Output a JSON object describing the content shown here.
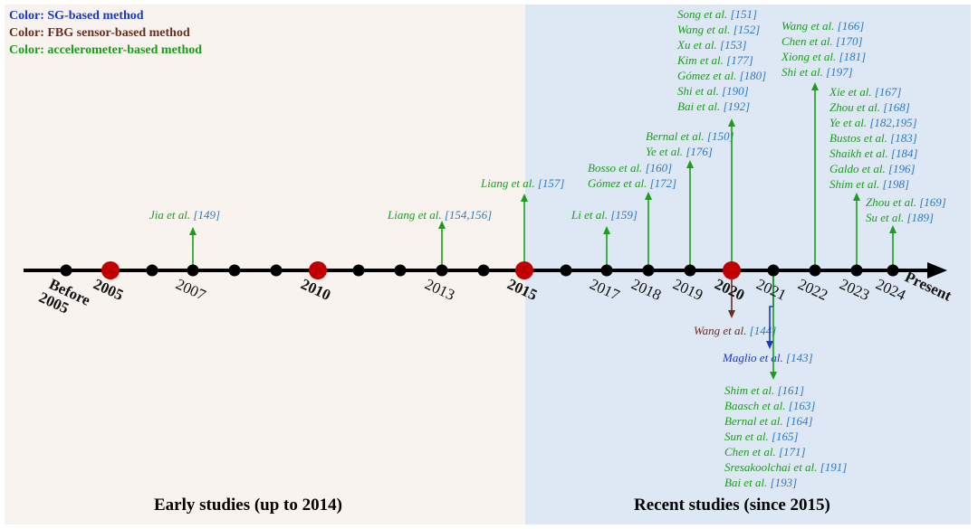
{
  "colors": {
    "sg": "#1838c8",
    "fbg": "#6b2e1e",
    "accelerometer": "#1a9e1a",
    "ref_number": "#2a78c8",
    "axis": "#000000",
    "major_node": "#c00000",
    "early_bg": "#f8f3ef",
    "recent_bg": "#dde8f4"
  },
  "legend": [
    {
      "text": "Color: SG-based method",
      "color": "#1838c8"
    },
    {
      "text": "Color: FBG sensor-based method",
      "color": "#6b2e1e"
    },
    {
      "text": "Color: accelerometer-based method",
      "color": "#1a9e1a"
    }
  ],
  "sections": {
    "early": "Early studies (up to 2014)",
    "recent": "Recent studies (since 2015)"
  },
  "timeline": {
    "end_label": "Present",
    "ticks": [
      {
        "label": "Before\n2005",
        "major": false,
        "bold": true
      },
      {
        "label": "2005",
        "major": true,
        "bold": true
      },
      {
        "label": "",
        "major": false,
        "bold": false
      },
      {
        "label": "2007",
        "major": false,
        "bold": false
      },
      {
        "label": "",
        "major": false,
        "bold": false
      },
      {
        "label": "",
        "major": false,
        "bold": false
      },
      {
        "label": "2010",
        "major": true,
        "bold": true
      },
      {
        "label": "",
        "major": false,
        "bold": false
      },
      {
        "label": "",
        "major": false,
        "bold": false
      },
      {
        "label": "2013",
        "major": false,
        "bold": false
      },
      {
        "label": "",
        "major": false,
        "bold": false
      },
      {
        "label": "2015",
        "major": true,
        "bold": true
      },
      {
        "label": "",
        "major": false,
        "bold": false
      },
      {
        "label": "2017",
        "major": false,
        "bold": false
      },
      {
        "label": "2018",
        "major": false,
        "bold": false
      },
      {
        "label": "2019",
        "major": false,
        "bold": false
      },
      {
        "label": "2020",
        "major": true,
        "bold": true
      },
      {
        "label": "2021",
        "major": false,
        "bold": false
      },
      {
        "label": "2022",
        "major": false,
        "bold": false
      },
      {
        "label": "2023",
        "major": false,
        "bold": false
      },
      {
        "label": "2024",
        "major": false,
        "bold": false
      }
    ]
  },
  "studies": [
    {
      "year": "2007",
      "method": "accelerometer",
      "direction": "up",
      "refs": [
        {
          "author": "Jia et al.",
          "num": "[149]"
        }
      ]
    },
    {
      "year": "2013",
      "method": "accelerometer",
      "direction": "up",
      "refs": [
        {
          "author": "Liang et al.",
          "num": "[154,156]"
        }
      ]
    },
    {
      "year": "2015",
      "method": "accelerometer",
      "direction": "up",
      "refs": [
        {
          "author": "Liang et al.",
          "num": "[157]"
        }
      ]
    },
    {
      "year": "2017",
      "method": "accelerometer",
      "direction": "up",
      "refs": [
        {
          "author": "Li et al.",
          "num": "[159]"
        }
      ]
    },
    {
      "year": "2018",
      "method": "accelerometer",
      "direction": "up",
      "refs": [
        {
          "author": "Bosso et al.",
          "num": "[160]"
        },
        {
          "author": "Gómez et al.",
          "num": "[172]"
        }
      ]
    },
    {
      "year": "2019",
      "method": "accelerometer",
      "direction": "up",
      "refs": [
        {
          "author": "Bernal et al.",
          "num": "[150]"
        },
        {
          "author": "Ye et al.",
          "num": "[176]"
        }
      ]
    },
    {
      "year": "2020",
      "method": "accelerometer",
      "direction": "up",
      "refs": [
        {
          "author": "Song et al.",
          "num": "[151]"
        },
        {
          "author": "Wang et al.",
          "num": "[152]"
        },
        {
          "author": "Xu  et al.",
          "num": "[153]"
        },
        {
          "author": "Kim et al.",
          "num": "[177]"
        },
        {
          "author": "Gómez et al.",
          "num": "[180]"
        },
        {
          "author": "Shi et al.",
          "num": "[190]"
        },
        {
          "author": "Bai et al.",
          "num": "[192]"
        }
      ]
    },
    {
      "year": "2020",
      "method": "fbg",
      "direction": "down",
      "refs": [
        {
          "author": "Wang et al.",
          "num": "[144]"
        }
      ]
    },
    {
      "year": "2021",
      "method": "sg",
      "direction": "down",
      "refs": [
        {
          "author": "Maglio et al.",
          "num": "[143]"
        }
      ]
    },
    {
      "year": "2021",
      "method": "accelerometer",
      "direction": "down",
      "refs": [
        {
          "author": "Shim et al.",
          "num": "[161]"
        },
        {
          "author": "Baasch et al.",
          "num": "[163]"
        },
        {
          "author": "Bernal et al.",
          "num": "[164]"
        },
        {
          "author": "Sun et al.",
          "num": "[165]"
        },
        {
          "author": "Chen et al.",
          "num": "[171]"
        },
        {
          "author": "Sresakoolchai et al.",
          "num": "[191]"
        },
        {
          "author": "Bai et al.",
          "num": "[193]"
        }
      ]
    },
    {
      "year": "2022",
      "method": "accelerometer",
      "direction": "up",
      "refs": [
        {
          "author": "Wang et al.",
          "num": "[166]"
        },
        {
          "author": "Chen et al.",
          "num": "[170]"
        },
        {
          "author": "Xiong et al.",
          "num": "[181]"
        },
        {
          "author": "Shi et al.",
          "num": "[197]"
        }
      ]
    },
    {
      "year": "2023",
      "method": "accelerometer",
      "direction": "up",
      "refs": [
        {
          "author": "Xie et al.",
          "num": "[167]"
        },
        {
          "author": "Zhou et al.",
          "num": "[168]"
        },
        {
          "author": "Ye et al.",
          "num": "[182,195]"
        },
        {
          "author": "Bustos et al.",
          "num": "[183]"
        },
        {
          "author": "Shaikh et al.",
          "num": "[184]"
        },
        {
          "author": "Galdo et al.",
          "num": "[196]"
        },
        {
          "author": "Shim et al.",
          "num": "[198]"
        }
      ]
    },
    {
      "year": "2024",
      "method": "accelerometer",
      "direction": "up",
      "refs": [
        {
          "author": "Zhou et al.",
          "num": "[169]"
        },
        {
          "author": "Su et al.",
          "num": "[189]"
        }
      ]
    }
  ]
}
